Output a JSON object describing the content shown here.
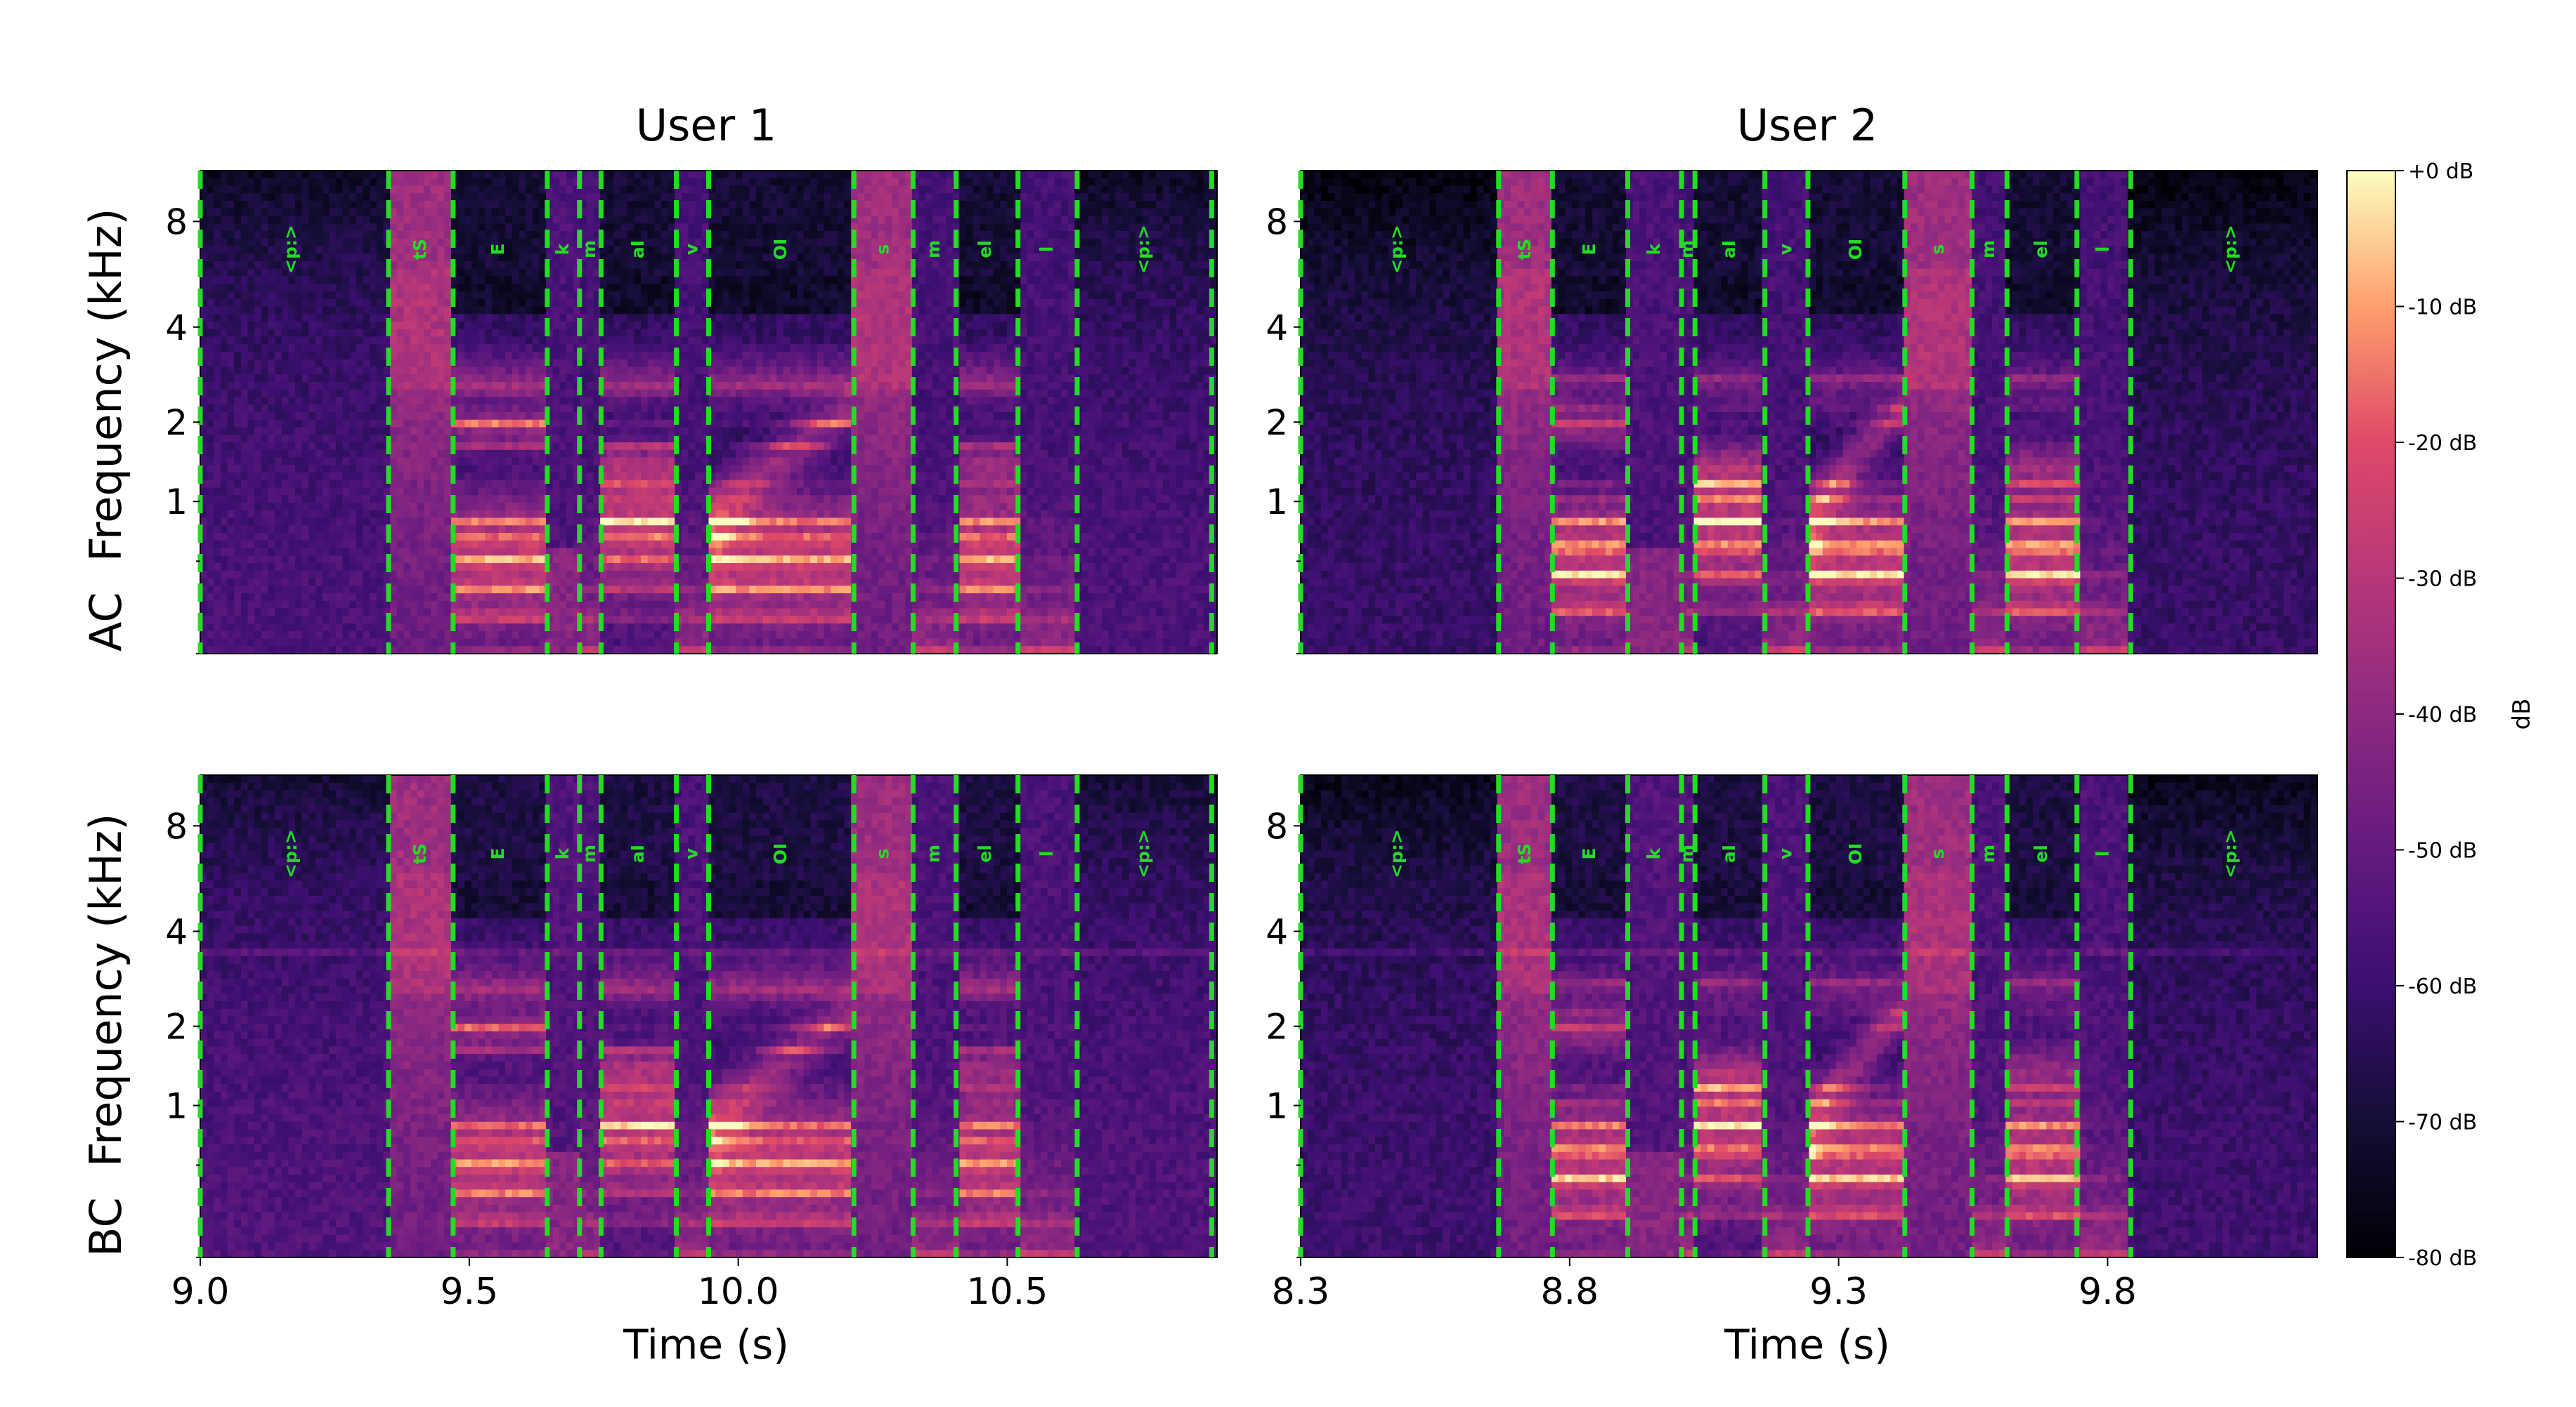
{
  "figure": {
    "background": "#ffffff"
  },
  "chart_data": {
    "type": "heatmap",
    "description_fields": {
      "col_titles": [
        "User 1",
        "User 2"
      ],
      "row_labels": [
        "AC",
        "BC"
      ],
      "ylabel": "Frequency (kHz)",
      "xlabel": "Time (s)"
    },
    "y_axis": {
      "scale": "mel",
      "ticks": [
        1,
        2,
        4,
        8
      ],
      "range_khz": [
        0,
        11
      ]
    },
    "colorbar": {
      "label": "dB",
      "range": [
        -80,
        0
      ],
      "ticks": [
        "+0 dB",
        "-10 dB",
        "-20 dB",
        "-30 dB",
        "-40 dB",
        "-50 dB",
        "-60 dB",
        "-70 dB",
        "-80 dB"
      ],
      "colormap": "magma"
    },
    "panels": [
      {
        "id": "user1",
        "title": "User 1",
        "xlim": [
          9.0,
          10.89
        ],
        "xticks": [
          {
            "v": 9.0,
            "label": "9.0"
          },
          {
            "v": 9.5,
            "label": "9.5"
          },
          {
            "v": 10.0,
            "label": "10.0"
          },
          {
            "v": 10.5,
            "label": "10.5"
          }
        ],
        "boundaries": [
          9.0,
          9.35,
          9.47,
          9.645,
          9.705,
          9.745,
          9.885,
          9.945,
          10.215,
          10.325,
          10.405,
          10.52,
          10.63,
          10.88
        ],
        "phonemes": [
          {
            "t": 9.17,
            "label": "<p:>"
          },
          {
            "t": 9.41,
            "label": "tS"
          },
          {
            "t": 9.555,
            "label": "E"
          },
          {
            "t": 9.675,
            "label": "k"
          },
          {
            "t": 9.725,
            "label": "m"
          },
          {
            "t": 9.815,
            "label": "aI"
          },
          {
            "t": 9.915,
            "label": "v"
          },
          {
            "t": 10.08,
            "label": "OI"
          },
          {
            "t": 10.27,
            "label": "s"
          },
          {
            "t": 10.365,
            "label": "m"
          },
          {
            "t": 10.46,
            "label": "el"
          },
          {
            "t": 10.575,
            "label": "l"
          },
          {
            "t": 10.755,
            "label": "<p:>"
          }
        ]
      },
      {
        "id": "user2",
        "title": "User 2",
        "xlim": [
          8.3,
          10.19
        ],
        "xticks": [
          {
            "v": 8.3,
            "label": "8.3"
          },
          {
            "v": 8.8,
            "label": "8.8"
          },
          {
            "v": 9.3,
            "label": "9.3"
          },
          {
            "v": 9.8,
            "label": "9.8"
          }
        ],
        "boundaries": [
          8.3,
          8.668,
          8.768,
          8.908,
          9.008,
          9.033,
          9.163,
          9.243,
          9.423,
          9.548,
          9.613,
          9.743,
          9.843
        ],
        "phonemes": [
          {
            "t": 8.48,
            "label": "<p:>"
          },
          {
            "t": 8.718,
            "label": "tS"
          },
          {
            "t": 8.838,
            "label": "E"
          },
          {
            "t": 8.958,
            "label": "k"
          },
          {
            "t": 9.02,
            "label": "m"
          },
          {
            "t": 9.098,
            "label": "aI"
          },
          {
            "t": 9.203,
            "label": "v"
          },
          {
            "t": 9.333,
            "label": "OI"
          },
          {
            "t": 9.486,
            "label": "s"
          },
          {
            "t": 9.58,
            "label": "m"
          },
          {
            "t": 9.678,
            "label": "el"
          },
          {
            "t": 9.793,
            "label": "l"
          },
          {
            "t": 10.03,
            "label": "<p:>"
          }
        ]
      }
    ]
  }
}
